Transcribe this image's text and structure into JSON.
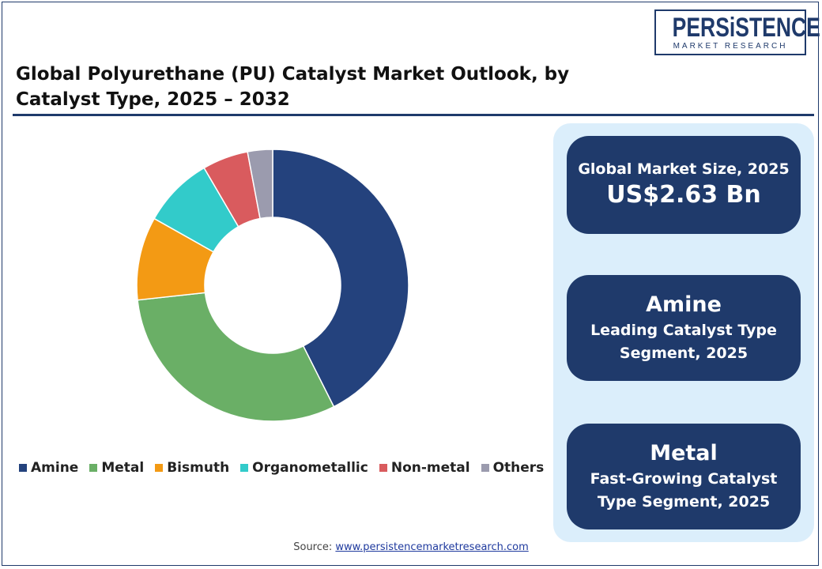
{
  "title": "Global Polyurethane (PU) Catalyst Market Outlook, by Catalyst Type, 2025 – 2032",
  "logo": {
    "main": "PERSiSTENCE",
    "sub": "MARKET RESEARCH"
  },
  "chart_data": {
    "type": "pie",
    "donut": true,
    "categories": [
      "Amine",
      "Metal",
      "Bismuth",
      "Organometallic",
      "Non-metal",
      "Others"
    ],
    "values": [
      43,
      31,
      10,
      8.5,
      5.5,
      3
    ],
    "colors": [
      "#24427d",
      "#6aaf66",
      "#f39a14",
      "#32cbca",
      "#d95b5e",
      "#9b9bae"
    ],
    "legend_position": "bottom",
    "title": ""
  },
  "cards": [
    {
      "label": "Global Market Size, 2025",
      "value": "US$2.63 Bn"
    },
    {
      "head": "Amine",
      "sub1": "Leading Catalyst Type",
      "sub2": "Segment, 2025"
    },
    {
      "head": "Metal",
      "sub1": "Fast-Growing Catalyst",
      "sub2": "Type Segment, 2025"
    }
  ],
  "source": {
    "label": "Source:",
    "link": "www.persistencemarketresearch.com"
  },
  "colors": {
    "navy": "#1f3a6b",
    "panel": "#dbeefb"
  }
}
